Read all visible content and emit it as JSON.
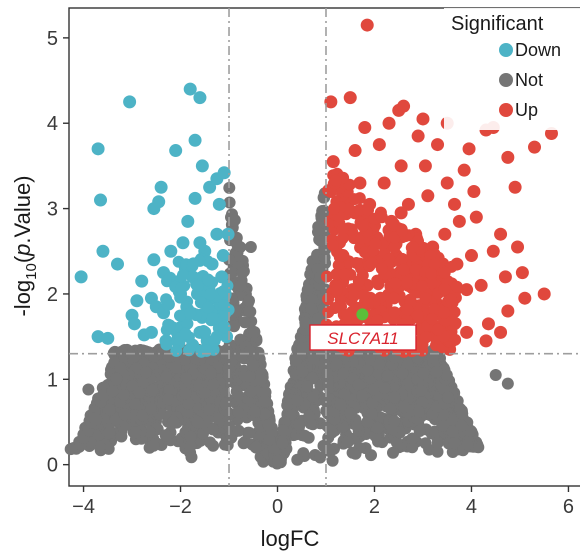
{
  "chart_data": {
    "type": "scatter",
    "title": "",
    "xlabel": "logFC",
    "ylabel_parts": [
      "-log",
      "10",
      "(",
      "p",
      ".Value)"
    ],
    "xlim": [
      -4.3,
      6.3
    ],
    "ylim": [
      -0.25,
      5.35
    ],
    "x_ticks": [
      -4,
      -2,
      0,
      2,
      4,
      6
    ],
    "y_ticks": [
      0,
      1,
      2,
      3,
      4,
      5
    ],
    "x_tick_labels": [
      "−4",
      "−2",
      "0",
      "2",
      "4",
      "6"
    ],
    "y_tick_labels": [
      "0",
      "1",
      "2",
      "3",
      "4",
      "5"
    ],
    "grid": false,
    "thresholds": {
      "logFC": [
        -1,
        1
      ],
      "neg_log10_p": 1.3
    },
    "legend": {
      "title": "Significant",
      "position": "top-right",
      "entries": [
        {
          "label": "Down",
          "color": "#4db3c6"
        },
        {
          "label": "Not",
          "color": "#757575"
        },
        {
          "label": "Up",
          "color": "#e0483d"
        }
      ]
    },
    "highlight": {
      "label": "SLC7A11",
      "x": 1.75,
      "y": 1.76,
      "color": "#5bbf3a"
    },
    "series": [
      {
        "name": "Down",
        "color": "#4db3c6",
        "points": [
          [
            -4.05,
            2.2
          ],
          [
            -3.7,
            3.7
          ],
          [
            -3.6,
            2.5
          ],
          [
            -3.65,
            3.1
          ],
          [
            -3.7,
            1.5
          ],
          [
            -3.5,
            1.48
          ],
          [
            -3.3,
            2.35
          ],
          [
            -3.05,
            4.25
          ],
          [
            -3.0,
            1.75
          ],
          [
            -2.95,
            1.65
          ],
          [
            -2.8,
            2.15
          ],
          [
            -2.75,
            1.52
          ],
          [
            -2.6,
            1.55
          ],
          [
            -2.6,
            1.95
          ],
          [
            -2.55,
            2.4
          ],
          [
            -2.5,
            1.85
          ],
          [
            -2.55,
            3.0
          ],
          [
            -2.45,
            3.08
          ],
          [
            -2.4,
            3.25
          ],
          [
            -2.35,
            2.25
          ],
          [
            -2.35,
            1.78
          ],
          [
            -2.25,
            1.88
          ],
          [
            -2.2,
            2.5
          ],
          [
            -2.1,
            3.68
          ],
          [
            -2.15,
            1.6
          ],
          [
            -2.05,
            1.48
          ],
          [
            -2.0,
            2.0
          ],
          [
            -1.95,
            2.6
          ],
          [
            -1.9,
            2.3
          ],
          [
            -1.85,
            2.85
          ],
          [
            -1.8,
            4.4
          ],
          [
            -1.75,
            2.2
          ],
          [
            -1.7,
            3.8
          ],
          [
            -1.7,
            3.12
          ],
          [
            -1.65,
            2.0
          ],
          [
            -1.6,
            4.3
          ],
          [
            -1.6,
            1.55
          ],
          [
            -1.55,
            3.5
          ],
          [
            -1.5,
            2.5
          ],
          [
            -1.45,
            2.1
          ],
          [
            -1.45,
            1.45
          ],
          [
            -1.4,
            3.25
          ],
          [
            -1.35,
            2.35
          ],
          [
            -1.3,
            1.95
          ],
          [
            -1.25,
            2.7
          ],
          [
            -1.25,
            3.35
          ],
          [
            -1.2,
            1.6
          ],
          [
            -1.15,
            2.2
          ],
          [
            -1.1,
            3.42
          ],
          [
            -1.12,
            2.45
          ],
          [
            -1.05,
            1.5
          ],
          [
            -1.08,
            2.0
          ],
          [
            -1.02,
            2.7
          ],
          [
            -1.3,
            1.8
          ],
          [
            -1.9,
            1.7
          ],
          [
            -2.9,
            1.92
          ],
          [
            -1.15,
            1.75
          ],
          [
            -1.6,
            2.6
          ],
          [
            -2.3,
            1.45
          ],
          [
            -1.75,
            1.4
          ],
          [
            -1.2,
            3.05
          ]
        ]
      },
      {
        "name": "Up",
        "color": "#e0483d",
        "points": [
          [
            1.85,
            5.15
          ],
          [
            1.1,
            4.25
          ],
          [
            1.5,
            4.3
          ],
          [
            1.6,
            3.68
          ],
          [
            1.8,
            3.95
          ],
          [
            2.1,
            3.75
          ],
          [
            2.3,
            4.0
          ],
          [
            2.5,
            4.15
          ],
          [
            2.55,
            3.5
          ],
          [
            2.6,
            4.2
          ],
          [
            2.9,
            3.85
          ],
          [
            3.0,
            4.05
          ],
          [
            3.05,
            3.5
          ],
          [
            3.3,
            3.75
          ],
          [
            3.5,
            4.0
          ],
          [
            3.5,
            3.3
          ],
          [
            3.65,
            3.05
          ],
          [
            3.75,
            2.85
          ],
          [
            3.85,
            3.45
          ],
          [
            4.05,
            3.2
          ],
          [
            4.1,
            2.9
          ],
          [
            4.3,
            3.92
          ],
          [
            4.45,
            2.5
          ],
          [
            4.45,
            3.95
          ],
          [
            4.75,
            3.6
          ],
          [
            4.7,
            2.2
          ],
          [
            4.9,
            3.25
          ],
          [
            5.05,
            2.25
          ],
          [
            5.3,
            3.72
          ],
          [
            5.1,
            1.95
          ],
          [
            5.65,
            3.88
          ],
          [
            5.5,
            2.0
          ],
          [
            4.35,
            1.65
          ],
          [
            4.75,
            1.8
          ],
          [
            4.3,
            1.45
          ],
          [
            4.2,
            2.1
          ],
          [
            3.9,
            1.55
          ],
          [
            4.0,
            2.45
          ],
          [
            1.15,
            3.55
          ],
          [
            1.25,
            3.38
          ],
          [
            1.4,
            3.1
          ],
          [
            1.7,
            3.3
          ],
          [
            1.9,
            3.05
          ],
          [
            2.2,
            3.3
          ],
          [
            2.35,
            2.85
          ],
          [
            2.7,
            3.05
          ],
          [
            2.85,
            2.7
          ],
          [
            3.2,
            2.55
          ],
          [
            3.45,
            2.7
          ],
          [
            3.7,
            2.35
          ],
          [
            3.9,
            2.05
          ],
          [
            3.6,
            1.9
          ],
          [
            3.3,
            2.15
          ],
          [
            3.0,
            2.35
          ],
          [
            2.7,
            2.1
          ],
          [
            2.45,
            2.45
          ],
          [
            2.2,
            2.2
          ],
          [
            1.95,
            2.55
          ],
          [
            1.7,
            2.35
          ],
          [
            1.5,
            2.7
          ],
          [
            1.35,
            2.45
          ],
          [
            1.2,
            2.1
          ],
          [
            1.1,
            2.85
          ],
          [
            1.3,
            1.85
          ],
          [
            1.55,
            2.05
          ],
          [
            1.85,
            2.1
          ],
          [
            2.05,
            1.9
          ],
          [
            2.35,
            1.75
          ],
          [
            2.6,
            1.6
          ],
          [
            2.9,
            1.75
          ],
          [
            3.15,
            1.55
          ],
          [
            3.4,
            1.45
          ],
          [
            3.65,
            1.65
          ],
          [
            2.8,
            1.4
          ],
          [
            2.1,
            1.45
          ],
          [
            1.6,
            1.55
          ],
          [
            1.15,
            1.5
          ],
          [
            1.4,
            1.35
          ],
          [
            3.1,
            3.15
          ],
          [
            2.55,
            2.95
          ],
          [
            1.6,
            2.95
          ],
          [
            2.0,
            2.8
          ],
          [
            4.6,
            2.7
          ],
          [
            3.95,
            3.7
          ],
          [
            4.95,
            2.55
          ],
          [
            3.55,
            1.35
          ],
          [
            4.6,
            1.55
          ]
        ]
      }
    ]
  }
}
